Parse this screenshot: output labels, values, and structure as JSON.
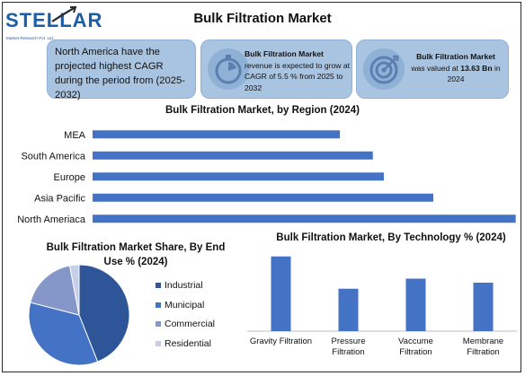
{
  "logo": {
    "word": "STELLAR",
    "sub": "Market Research Pvt. Ltd."
  },
  "title": "Bulk Filtration Market",
  "cards": {
    "card1": "North America have the projected highest CAGR during the period from (2025-2032)",
    "card2": {
      "bold": "Bulk Filtration Market",
      "text": "revenue is expected to grow at CAGR of 5.5 % from 2025 to 2032",
      "icon": "stopwatch-icon"
    },
    "card3": {
      "bold": "Bulk Filtration Market",
      "pre": "was valued at ",
      "value": "13.63 Bn",
      "post": " in 2024",
      "icon": "target-icon"
    }
  },
  "region_title": "Bulk Filtration Market, by Region (2024)",
  "enduse_title": "Bulk Filtration Market Share, By End Use % (2024)",
  "tech_title": "Bulk Filtration Market, By Technology % (2024)",
  "colors": {
    "accent": "#4472c4",
    "card": "#a9c4e0",
    "brand": "#1b5ea8"
  },
  "chart_data": [
    {
      "type": "bar",
      "orientation": "horizontal",
      "title": "Bulk Filtration Market, by Region (2024)",
      "categories": [
        "MEA",
        "South America",
        "Europe",
        "Asia Pacific",
        "North Ameriaca"
      ],
      "values": [
        45,
        51,
        53,
        62,
        77
      ],
      "xlim": [
        0,
        80
      ],
      "color": "#4472c4",
      "grid": false
    },
    {
      "type": "pie",
      "title": "Bulk Filtration Market Share, By End Use % (2024)",
      "labels": [
        "Industrial",
        "Municipal",
        "Commercial",
        "Residential"
      ],
      "values": [
        44,
        35,
        18,
        3
      ],
      "colors": [
        "#2e5597",
        "#4472c4",
        "#8497c8",
        "#c7cfe6"
      ],
      "legend": "right"
    },
    {
      "type": "bar",
      "title": "Bulk Filtration Market, By Technology % (2024)",
      "categories": [
        "Gravity Filtration",
        "Pressure Filtration",
        "Vaccume Filtration",
        "Membrane Filtration"
      ],
      "values": [
        37,
        21,
        26,
        24
      ],
      "ylim": [
        0,
        40
      ],
      "color": "#4472c4",
      "grid": false
    }
  ]
}
